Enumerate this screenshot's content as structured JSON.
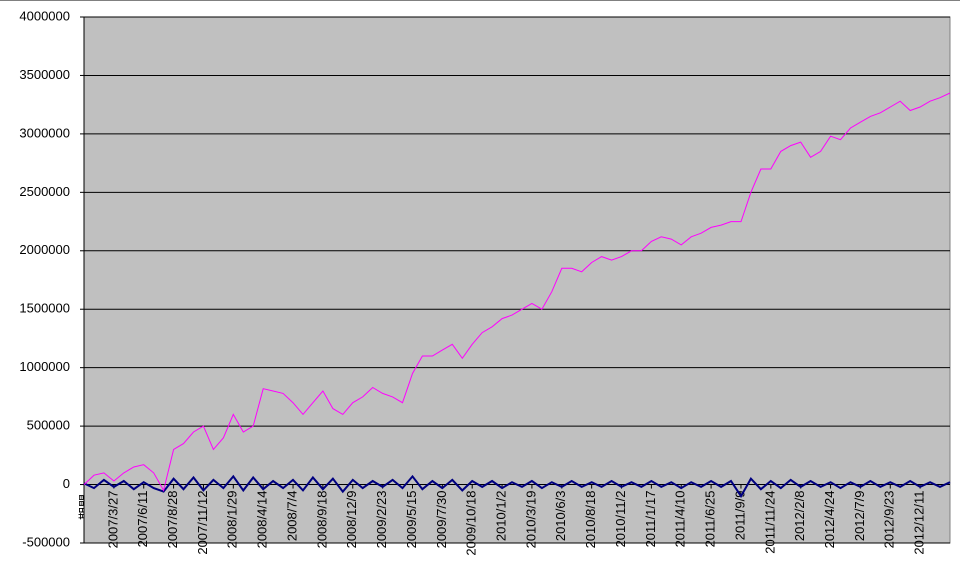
{
  "chart_data": {
    "type": "line",
    "x_label": "期間",
    "categories": [
      null,
      null,
      null,
      "2007/3/27",
      null,
      null,
      "2007/6/11",
      null,
      null,
      "2007/8/28",
      null,
      null,
      "2007/11/12",
      null,
      null,
      "2008/1/29",
      null,
      null,
      "2008/4/14",
      null,
      null,
      "2008/7/4",
      null,
      null,
      "2008/9/18",
      null,
      null,
      "2008/12/9",
      null,
      null,
      "2009/2/23",
      null,
      null,
      "2009/5/15",
      null,
      null,
      "2009/7/30",
      null,
      null,
      "2009/10/18",
      null,
      null,
      "2010/1/2",
      null,
      null,
      "2010/3/19",
      null,
      null,
      "2010/6/3",
      null,
      null,
      "2010/8/18",
      null,
      null,
      "2010/11/2",
      null,
      null,
      "2011/1/17",
      null,
      null,
      "2011/4/10",
      null,
      null,
      "2011/6/25",
      null,
      null,
      "2011/9/9",
      null,
      null,
      "2011/11/24",
      null,
      null,
      "2012/2/8",
      null,
      null,
      "2012/4/24",
      null,
      null,
      "2012/7/9",
      null,
      null,
      "2012/9/23",
      null,
      null,
      "2012/12/11",
      null,
      null,
      null
    ],
    "series": [
      {
        "color": "#ff00ff",
        "values": [
          0,
          80000,
          100000,
          30000,
          100000,
          150000,
          170000,
          100000,
          -50000,
          300000,
          350000,
          450000,
          500000,
          300000,
          400000,
          600000,
          450000,
          500000,
          820000,
          800000,
          780000,
          700000,
          600000,
          700000,
          800000,
          650000,
          600000,
          700000,
          750000,
          830000,
          780000,
          750000,
          700000,
          950000,
          1100000,
          1100000,
          1150000,
          1200000,
          1080000,
          1200000,
          1300000,
          1350000,
          1420000,
          1450000,
          1500000,
          1550000,
          1500000,
          1650000,
          1850000,
          1850000,
          1820000,
          1900000,
          1950000,
          1920000,
          1950000,
          2000000,
          2000000,
          2080000,
          2120000,
          2100000,
          2050000,
          2120000,
          2150000,
          2200000,
          2220000,
          2250000,
          2250000,
          2500000,
          2700000,
          2700000,
          2850000,
          2900000,
          2930000,
          2800000,
          2850000,
          2980000,
          2950000,
          3050000,
          3100000,
          3150000,
          3180000,
          3230000,
          3280000,
          3200000,
          3230000,
          3280000,
          3310000,
          3350000
        ]
      },
      {
        "color": "#000080",
        "values": [
          10000,
          -30000,
          40000,
          -20000,
          30000,
          -40000,
          20000,
          -30000,
          -60000,
          50000,
          -40000,
          60000,
          -50000,
          40000,
          -30000,
          70000,
          -50000,
          60000,
          -40000,
          30000,
          -30000,
          40000,
          -50000,
          60000,
          -40000,
          50000,
          -60000,
          40000,
          -30000,
          30000,
          -20000,
          40000,
          -30000,
          70000,
          -40000,
          30000,
          -30000,
          40000,
          -50000,
          30000,
          -20000,
          30000,
          -30000,
          20000,
          -20000,
          30000,
          -30000,
          20000,
          -20000,
          30000,
          -20000,
          20000,
          -20000,
          30000,
          -20000,
          20000,
          -20000,
          30000,
          -20000,
          20000,
          -30000,
          20000,
          -20000,
          30000,
          -20000,
          30000,
          -100000,
          50000,
          -40000,
          30000,
          -30000,
          40000,
          -20000,
          30000,
          -20000,
          20000,
          -30000,
          20000,
          -20000,
          30000,
          -20000,
          20000,
          -20000,
          30000,
          -20000,
          20000,
          -20000,
          20000
        ]
      }
    ],
    "ylim": [
      -500000,
      4000000
    ],
    "yticks": [
      -500000,
      0,
      500000,
      1000000,
      1500000,
      2000000,
      2500000,
      3000000,
      3500000,
      4000000
    ],
    "grid": true,
    "background": "#c0c0c0"
  }
}
